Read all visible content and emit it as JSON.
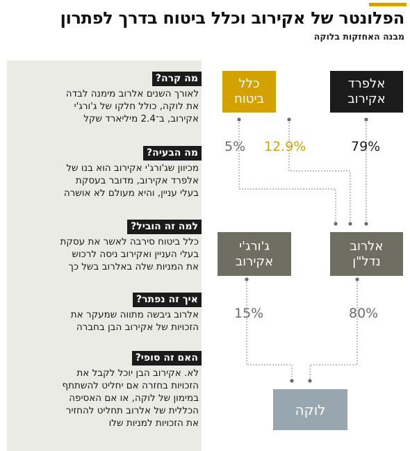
{
  "title": "הפלונטר של אקירוב וכלל ביטוח בדרך לפתרון",
  "subtitle": "מבנה האחזקות בלוקה",
  "colors": {
    "accent_gold": "#d4a200",
    "dark": "#1b1b1b",
    "gray_box": "#6e6e63",
    "panel_bg": "#ebebe6",
    "luke_blue": "#98a6b0",
    "pct_gray": "#6b6b6b",
    "connector": "#9a9a9a"
  },
  "qa": [
    {
      "q": "מה קרה?",
      "a": [
        "לאורך השנים אלרוב מימנה לבדה",
        "את לוקה, כולל חלקו של ג'ורג'י",
        "אקירוב, ב־2.4 מיליארד שקל"
      ]
    },
    {
      "q": "מה הבעיה?",
      "a": [
        "מכיוון שג'ורג'י אקירוב הוא בנו של",
        "אלפרד אקירוב, מדובר בעסקת",
        "בעלי עניין, והיא מעולם לא אושרה"
      ]
    },
    {
      "q": "למה זה הוביל?",
      "a": [
        "כלל ביטוח סירבה לאשר את עסקת",
        "בעלי העניין ואקירוב ניסה לרכוש",
        "את המניות שלה באלרוב בשל כך"
      ]
    },
    {
      "q": "איך זה נפתר?",
      "a": [
        "אלרוב גיבשה מתווה שמעקר את",
        "הזכויות של אקירוב הבן בחברה"
      ]
    },
    {
      "q": "האם זה סופי?",
      "a": [
        "לא. אקירוב הבן יוכל לקבל את",
        "הזכויות בחזרה אם יחליט להשתתף",
        "במימון של לוקה, או אם האסיפה",
        "הכללית של אלרוב תחליט להחזיר",
        "את הזכויות למניות שלו"
      ]
    }
  ],
  "diagram": {
    "nodes": {
      "alfred": [
        "אלפרד",
        "אקירוב"
      ],
      "clal": [
        "כלל",
        "ביטוח"
      ],
      "alrov": [
        "אלרוב",
        "נדל\"ן"
      ],
      "george": [
        "ג'ורג'י",
        "אקירוב"
      ],
      "luke": [
        "לוקה"
      ]
    },
    "edges": {
      "alfred_to_alrov": "79%",
      "clal_to_alrov": "12.9%",
      "other_to_alrov": "5%",
      "alrov_to_luke": "80%",
      "george_to_luke": "15%"
    }
  }
}
